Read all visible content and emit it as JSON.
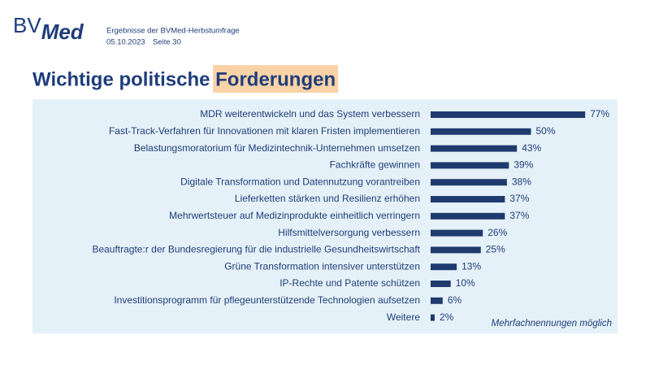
{
  "header": {
    "logo": {
      "light": "BV",
      "bold": "Med"
    },
    "subtitle": "Ergebnisse der BVMed-Herbstumfrage",
    "date": "05.10.2023",
    "page": "Seite 30"
  },
  "chart_data": {
    "type": "hbar",
    "title": "Wichtige politische Forderungen",
    "highlight": "Forderungen",
    "categories": [
      "MDR weiterentwickeln und das System verbessern",
      "Fast-Track-Verfahren für Innovationen mit klaren Fristen implementieren",
      "Belastungsmoratorium für Medizintechnik-Unternehmen umsetzen",
      "Fachkräfte gewinnen",
      "Digitale Transformation und Datennutzung vorantreiben",
      "Lieferketten stärken und Resilienz erhöhen",
      "Mehrwertsteuer auf Medizinprodukte einheitlich verringern",
      "Hilfsmittelversorgung verbessern",
      "Beauftragte:r der Bundesregierung für die industrielle Gesundheitswirtschaft",
      "Grüne Transformation intensiver unterstützen",
      "IP-Rechte und Patente schützen",
      "Investitionsprogramm für pflegeunterstützende Technologien aufsetzen",
      "Weitere"
    ],
    "values": [
      77,
      50,
      43,
      39,
      38,
      37,
      37,
      26,
      25,
      13,
      10,
      6,
      2
    ],
    "value_labels": [
      "77%",
      "50%",
      "43%",
      "39%",
      "38%",
      "37%",
      "37%",
      "26%",
      "25%",
      "13%",
      "10%",
      "6%",
      "2%"
    ],
    "color": "#1f3a6e",
    "annotation": "Mehrfachnennungen möglich"
  }
}
